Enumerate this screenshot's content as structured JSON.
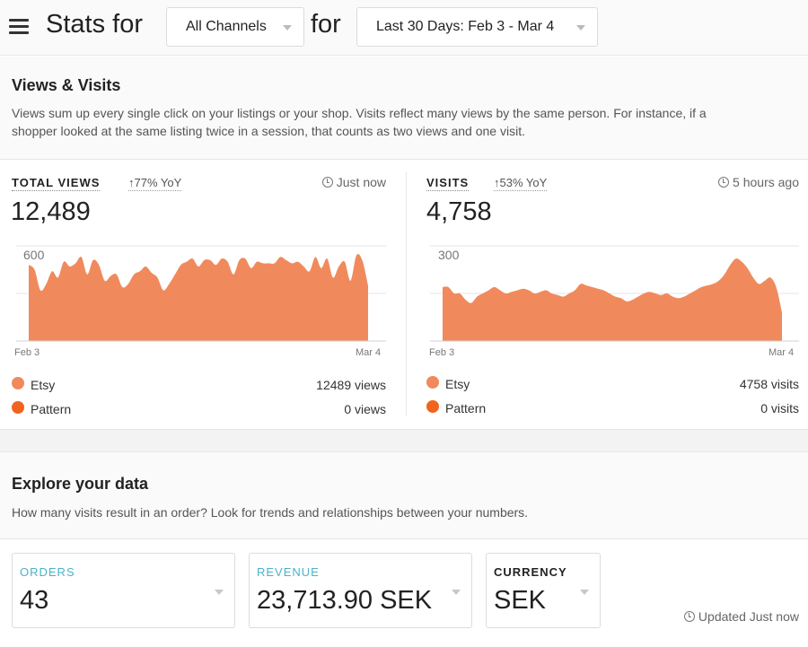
{
  "header": {
    "menu_icon": "hamburger-menu-icon",
    "title_prefix": "Stats for",
    "channel_select": "All Channels",
    "title_connector": "for",
    "date_select": "Last 30 Days: Feb 3 - Mar 4"
  },
  "views_visits": {
    "title": "Views & Visits",
    "description_line1": "Views sum up every single click on your listings or your shop. Visits reflect many views by the same person. For instance, if a",
    "description_line2": "shopper looked at the same listing twice in a session, that counts as two views and one visit."
  },
  "total_views": {
    "label": "TOTAL VIEWS",
    "yoy": "77% YoY",
    "updated": "Just now",
    "value": "12,489",
    "legend": [
      {
        "name": "Etsy",
        "value": "12489 views",
        "color": "#f08a5d"
      },
      {
        "name": "Pattern",
        "value": "0 views",
        "color": "#f1641e"
      }
    ]
  },
  "visits": {
    "label": "VISITS",
    "yoy": "53% YoY",
    "updated": "5 hours ago",
    "value": "4,758",
    "legend": [
      {
        "name": "Etsy",
        "value": "4758 visits",
        "color": "#f08a5d"
      },
      {
        "name": "Pattern",
        "value": "0 visits",
        "color": "#f1641e"
      }
    ]
  },
  "chart_data": [
    {
      "type": "area",
      "x_start": "Feb 3",
      "x_end": "Mar 4",
      "ymax_tick": "600",
      "ylim": [
        0,
        600
      ],
      "grid": true,
      "color": "#f08a5d",
      "values": [
        480,
        450,
        320,
        360,
        440,
        400,
        500,
        470,
        490,
        530,
        420,
        510,
        480,
        380,
        410,
        420,
        340,
        360,
        420,
        440,
        470,
        430,
        400,
        320,
        360,
        420,
        480,
        500,
        520,
        470,
        510,
        510,
        480,
        520,
        500,
        420,
        510,
        520,
        460,
        500,
        490,
        490,
        490,
        530,
        510,
        490,
        500,
        470,
        440,
        530,
        460,
        520,
        400,
        470,
        500,
        380,
        540,
        510,
        350
      ]
    },
    {
      "type": "area",
      "x_start": "Feb 3",
      "x_end": "Mar 4",
      "ymax_tick": "300",
      "ylim": [
        0,
        300
      ],
      "grid": true,
      "color": "#f08a5d",
      "values": [
        170,
        170,
        150,
        150,
        130,
        120,
        140,
        150,
        160,
        170,
        160,
        150,
        155,
        160,
        165,
        160,
        150,
        155,
        160,
        150,
        145,
        140,
        150,
        160,
        180,
        175,
        170,
        165,
        160,
        150,
        140,
        135,
        125,
        130,
        140,
        150,
        155,
        150,
        145,
        150,
        140,
        135,
        140,
        150,
        160,
        170,
        175,
        180,
        190,
        210,
        240,
        260,
        250,
        230,
        200,
        180,
        190,
        200,
        170,
        90
      ]
    }
  ],
  "explore": {
    "title": "Explore your data",
    "description": "How many visits result in an order? Look for trends and relationships between your numbers."
  },
  "metrics": [
    {
      "label": "ORDERS",
      "value": "43",
      "color": "#4bb3c7"
    },
    {
      "label": "REVENUE",
      "value": "23,713.90 SEK",
      "color": "#4bb3c7"
    },
    {
      "label": "CURRENCY",
      "value": "SEK",
      "color": "#222222"
    }
  ],
  "updated_footer": "Updated Just now"
}
